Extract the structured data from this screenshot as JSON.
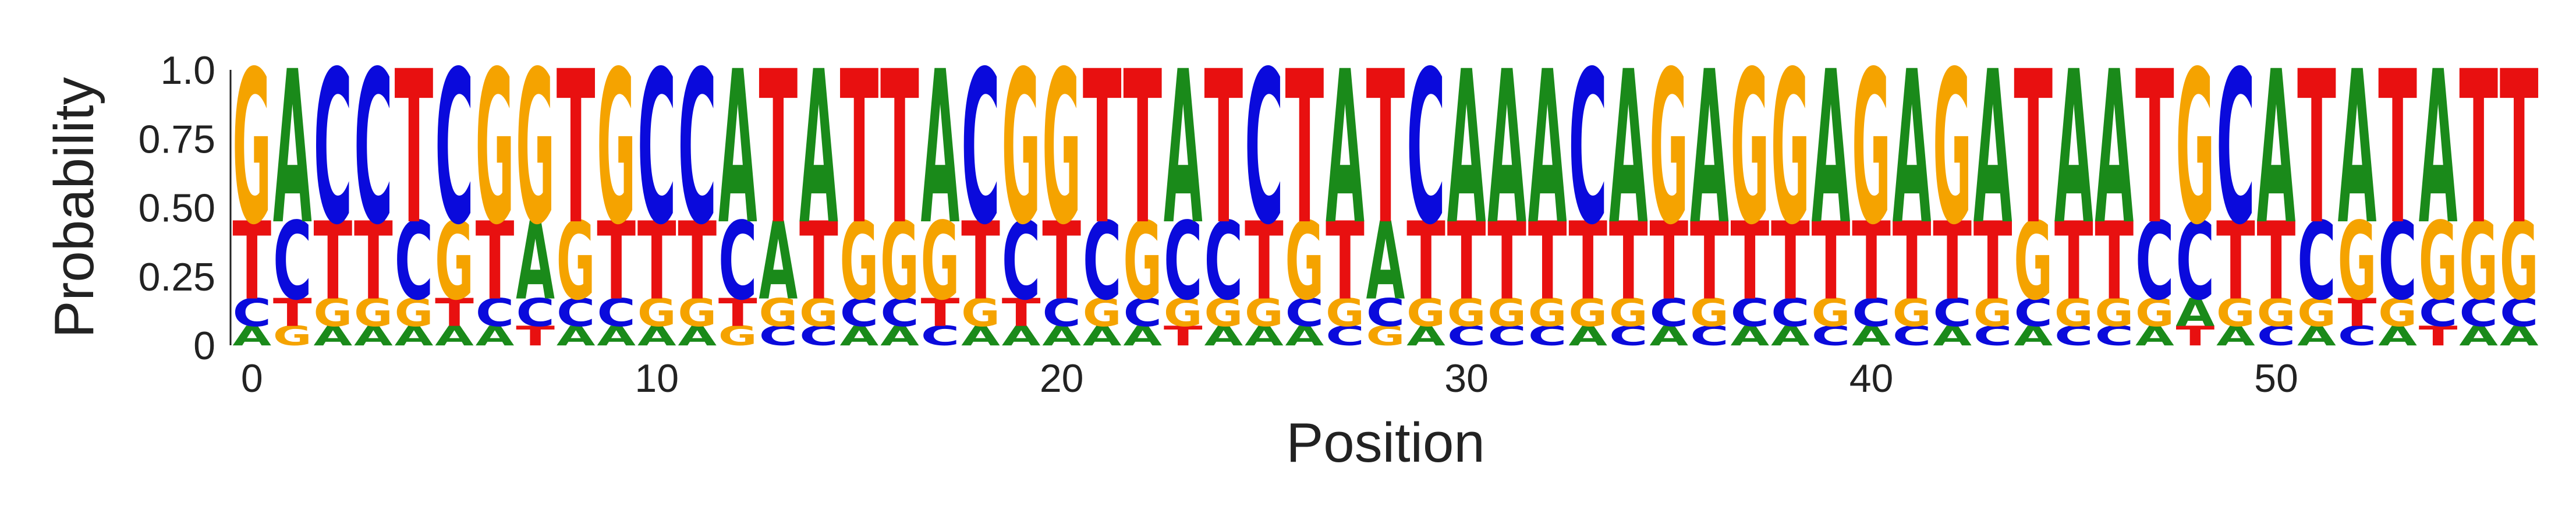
{
  "chart_data": {
    "type": "sequence-logo",
    "xlabel": "Position",
    "ylabel": "Probability",
    "ylim": [
      0,
      1
    ],
    "xlim": [
      -0.5,
      56.5
    ],
    "yticks": [
      0,
      0.25,
      0.5,
      0.75,
      1.0
    ],
    "ytick_labels": [
      "0",
      "0.25",
      "0.50",
      "0.75",
      "1.0"
    ],
    "xticks": [
      0,
      10,
      20,
      30,
      40,
      50
    ],
    "xtick_labels": [
      "0",
      "10",
      "20",
      "30",
      "40",
      "50"
    ],
    "alphabet": [
      "A",
      "C",
      "G",
      "T"
    ],
    "colors": {
      "A": "#1a8a1a",
      "C": "#0a0adc",
      "G": "#f5a300",
      "T": "#e81010"
    },
    "legend": "none",
    "grid": false,
    "positions": [
      {
        "A": 0.07,
        "C": 0.1,
        "G": 0.55,
        "T": 0.28
      },
      {
        "A": 0.55,
        "C": 0.28,
        "G": 0.07,
        "T": 0.1
      },
      {
        "A": 0.07,
        "C": 0.55,
        "G": 0.1,
        "T": 0.28
      },
      {
        "A": 0.07,
        "C": 0.55,
        "G": 0.1,
        "T": 0.28
      },
      {
        "A": 0.07,
        "C": 0.28,
        "G": 0.1,
        "T": 0.55
      },
      {
        "A": 0.07,
        "C": 0.55,
        "G": 0.28,
        "T": 0.1
      },
      {
        "A": 0.07,
        "C": 0.1,
        "G": 0.55,
        "T": 0.28
      },
      {
        "A": 0.28,
        "C": 0.1,
        "G": 0.55,
        "T": 0.07
      },
      {
        "A": 0.07,
        "C": 0.1,
        "G": 0.28,
        "T": 0.55
      },
      {
        "A": 0.07,
        "C": 0.1,
        "G": 0.55,
        "T": 0.28
      },
      {
        "A": 0.07,
        "C": 0.55,
        "G": 0.1,
        "T": 0.28
      },
      {
        "A": 0.07,
        "C": 0.55,
        "G": 0.1,
        "T": 0.28
      },
      {
        "A": 0.55,
        "C": 0.28,
        "G": 0.07,
        "T": 0.1
      },
      {
        "A": 0.28,
        "C": 0.07,
        "G": 0.1,
        "T": 0.55
      },
      {
        "A": 0.55,
        "C": 0.07,
        "G": 0.1,
        "T": 0.28
      },
      {
        "A": 0.07,
        "C": 0.1,
        "G": 0.28,
        "T": 0.55
      },
      {
        "A": 0.07,
        "C": 0.1,
        "G": 0.28,
        "T": 0.55
      },
      {
        "A": 0.55,
        "C": 0.07,
        "G": 0.28,
        "T": 0.1
      },
      {
        "A": 0.07,
        "C": 0.55,
        "G": 0.1,
        "T": 0.28
      },
      {
        "A": 0.07,
        "C": 0.28,
        "G": 0.55,
        "T": 0.1
      },
      {
        "A": 0.07,
        "C": 0.1,
        "G": 0.55,
        "T": 0.28
      },
      {
        "A": 0.07,
        "C": 0.28,
        "G": 0.1,
        "T": 0.55
      },
      {
        "A": 0.07,
        "C": 0.1,
        "G": 0.28,
        "T": 0.55
      },
      {
        "A": 0.55,
        "C": 0.28,
        "G": 0.1,
        "T": 0.07
      },
      {
        "A": 0.07,
        "C": 0.28,
        "G": 0.1,
        "T": 0.55
      },
      {
        "A": 0.07,
        "C": 0.55,
        "G": 0.1,
        "T": 0.28
      },
      {
        "A": 0.07,
        "C": 0.1,
        "G": 0.28,
        "T": 0.55
      },
      {
        "A": 0.55,
        "C": 0.07,
        "G": 0.1,
        "T": 0.28
      },
      {
        "A": 0.28,
        "C": 0.1,
        "G": 0.07,
        "T": 0.55
      },
      {
        "A": 0.07,
        "C": 0.55,
        "G": 0.1,
        "T": 0.28
      },
      {
        "A": 0.55,
        "C": 0.07,
        "G": 0.1,
        "T": 0.28
      },
      {
        "A": 0.55,
        "C": 0.07,
        "G": 0.1,
        "T": 0.28
      },
      {
        "A": 0.55,
        "C": 0.07,
        "G": 0.1,
        "T": 0.28
      },
      {
        "A": 0.07,
        "C": 0.55,
        "G": 0.1,
        "T": 0.28
      },
      {
        "A": 0.55,
        "C": 0.07,
        "G": 0.1,
        "T": 0.28
      },
      {
        "A": 0.07,
        "C": 0.1,
        "G": 0.55,
        "T": 0.28
      },
      {
        "A": 0.55,
        "C": 0.07,
        "G": 0.1,
        "T": 0.28
      },
      {
        "A": 0.07,
        "C": 0.1,
        "G": 0.55,
        "T": 0.28
      },
      {
        "A": 0.07,
        "C": 0.1,
        "G": 0.55,
        "T": 0.28
      },
      {
        "A": 0.55,
        "C": 0.07,
        "G": 0.1,
        "T": 0.28
      },
      {
        "A": 0.07,
        "C": 0.1,
        "G": 0.55,
        "T": 0.28
      },
      {
        "A": 0.55,
        "C": 0.07,
        "G": 0.1,
        "T": 0.28
      },
      {
        "A": 0.07,
        "C": 0.1,
        "G": 0.55,
        "T": 0.28
      },
      {
        "A": 0.55,
        "C": 0.07,
        "G": 0.1,
        "T": 0.28
      },
      {
        "A": 0.07,
        "C": 0.1,
        "G": 0.28,
        "T": 0.55
      },
      {
        "A": 0.55,
        "C": 0.07,
        "G": 0.1,
        "T": 0.28
      },
      {
        "A": 0.55,
        "C": 0.07,
        "G": 0.1,
        "T": 0.28
      },
      {
        "A": 0.07,
        "C": 0.28,
        "G": 0.1,
        "T": 0.55
      },
      {
        "A": 0.1,
        "C": 0.28,
        "G": 0.55,
        "T": 0.07
      },
      {
        "A": 0.07,
        "C": 0.55,
        "G": 0.1,
        "T": 0.28
      },
      {
        "A": 0.55,
        "C": 0.07,
        "G": 0.1,
        "T": 0.28
      },
      {
        "A": 0.07,
        "C": 0.28,
        "G": 0.1,
        "T": 0.55
      },
      {
        "A": 0.55,
        "C": 0.07,
        "G": 0.28,
        "T": 0.1
      },
      {
        "A": 0.07,
        "C": 0.28,
        "G": 0.1,
        "T": 0.55
      },
      {
        "A": 0.55,
        "C": 0.1,
        "G": 0.28,
        "T": 0.07
      },
      {
        "A": 0.07,
        "C": 0.1,
        "G": 0.28,
        "T": 0.55
      },
      {
        "A": 0.07,
        "C": 0.1,
        "G": 0.28,
        "T": 0.55
      }
    ]
  }
}
